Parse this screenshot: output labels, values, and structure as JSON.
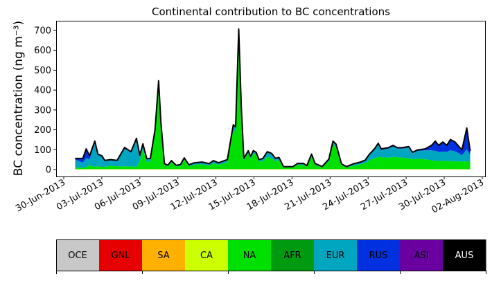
{
  "chart_data": {
    "type": "area",
    "stacked": true,
    "title": "Continental contribution to BC concentrations",
    "ylabel": "BC concentration (ng m⁻³)",
    "xlabel": "",
    "ylim": [
      0,
      740
    ],
    "yticks": [
      0,
      100,
      200,
      300,
      400,
      500,
      600,
      700
    ],
    "xlim_days_since_30jun2013": [
      -0.6,
      33.3
    ],
    "xticks_days": [
      0,
      3,
      6,
      9,
      12,
      15,
      18,
      21,
      24,
      27,
      30,
      33
    ],
    "xtick_labels": [
      "30-Jun-2013",
      "03-Jul-2013",
      "06-Jul-2013",
      "09-Jul-2013",
      "12-Jul-2013",
      "15-Jul-2013",
      "18-Jul-2013",
      "21-Jul-2013",
      "24-Jul-2013",
      "27-Jul-2013",
      "30-Jul-2013",
      "02-Aug-2013"
    ],
    "x_days_since_30jun2013": [
      0.9,
      1.5,
      1.77,
      2.04,
      2.45,
      2.7,
      3.0,
      3.24,
      3.7,
      4.2,
      4.8,
      5.3,
      5.73,
      6.0,
      6.24,
      6.55,
      6.83,
      7.2,
      7.48,
      7.66,
      7.94,
      8.2,
      8.49,
      8.86,
      9.2,
      9.5,
      9.87,
      10.3,
      10.9,
      11.46,
      11.8,
      12.2,
      12.9,
      13.37,
      13.55,
      13.8,
      14.0,
      14.2,
      14.55,
      14.73,
      14.95,
      15.17,
      15.4,
      15.7,
      16.05,
      16.4,
      16.7,
      16.97,
      17.33,
      18.07,
      18.44,
      18.9,
      19.17,
      19.54,
      19.82,
      20.37,
      20.9,
      21.23,
      21.47,
      21.9,
      22.3,
      22.84,
      23.4,
      23.76,
      24.1,
      24.5,
      24.8,
      25.04,
      25.6,
      25.96,
      26.3,
      26.7,
      27.2,
      27.5,
      27.9,
      28.5,
      29.0,
      29.3,
      29.55,
      29.9,
      30.2,
      30.5,
      30.85,
      31.4,
      31.78,
      32.05
    ],
    "series": [
      {
        "name": "OCE",
        "color": "#c8c8c8",
        "values": 0
      },
      {
        "name": "GNL",
        "color": "#e60000",
        "values": 0
      },
      {
        "name": "SA",
        "color": "#ffb000",
        "values": 1
      },
      {
        "name": "CA",
        "color": "#ccff00",
        "values": 1
      },
      {
        "name": "NA",
        "color": "#00e000",
        "values": [
          8,
          8,
          10,
          20,
          12,
          15,
          12,
          12,
          18,
          14,
          14,
          14,
          12,
          40,
          100,
          35,
          40,
          180,
          400,
          210,
          20,
          14,
          35,
          14,
          16,
          48,
          15,
          22,
          25,
          18,
          30,
          22,
          35,
          200,
          185,
          640,
          290,
          45,
          80,
          55,
          80,
          72,
          38,
          40,
          62,
          55,
          40,
          45,
          10,
          10,
          22,
          22,
          14,
          65,
          22,
          10,
          40,
          125,
          110,
          20,
          10,
          18,
          25,
          30,
          45,
          55,
          62,
          60,
          58,
          62,
          60,
          58,
          55,
          50,
          52,
          50,
          45,
          42,
          42,
          40,
          42,
          40,
          40,
          38,
          40,
          35
        ]
      },
      {
        "name": "AFR",
        "color": "#009a10",
        "values": 0
      },
      {
        "name": "EUR",
        "color": "#00a5c0",
        "values": [
          40,
          25,
          45,
          30,
          118,
          55,
          51,
          28,
          26,
          26,
          90,
          69,
          138,
          26,
          24,
          15,
          11,
          17,
          30,
          20,
          5,
          4,
          6,
          4,
          5,
          7,
          5,
          7,
          8,
          7,
          10,
          7,
          10,
          20,
          24,
          40,
          20,
          7,
          10,
          7,
          10,
          10,
          8,
          11,
          23,
          21,
          12,
          12,
          2,
          2,
          5,
          5,
          3,
          9,
          5,
          2,
          8,
          13,
          13,
          5,
          2,
          6,
          7,
          10,
          25,
          42,
          62,
          37,
          45,
          52,
          43,
          45,
          53,
          30,
          40,
          45,
          50,
          50,
          45,
          48,
          45,
          55,
          50,
          32,
          60,
          35
        ]
      },
      {
        "name": "RUS",
        "color": "#0030e0",
        "values": [
          5,
          20,
          46,
          17,
          10,
          4,
          4,
          3,
          3,
          3,
          4,
          4,
          4,
          3,
          3,
          2,
          2,
          3,
          14,
          4,
          2,
          1,
          1,
          1,
          1,
          1,
          1,
          2,
          2,
          2,
          2,
          2,
          2,
          3,
          3,
          24,
          5,
          1,
          2,
          1,
          2,
          2,
          1,
          2,
          2,
          2,
          1,
          1,
          0,
          0,
          1,
          1,
          0,
          1,
          1,
          0,
          1,
          2,
          2,
          1,
          0,
          2,
          3,
          4,
          4,
          4,
          5,
          4,
          4,
          5,
          4,
          4,
          5,
          4,
          4,
          6,
          24,
          48,
          32,
          48,
          32,
          53,
          46,
          26,
          106,
          20
        ]
      },
      {
        "name": "ASI",
        "color": "#6a00a0",
        "values": 1
      },
      {
        "name": "AUS",
        "color": "#000000",
        "values": 0
      }
    ],
    "legend": {
      "placement": "bottom-colorbar",
      "labels": [
        "OCE",
        "GNL",
        "SA",
        "CA",
        "NA",
        "AFR",
        "EUR",
        "RUS",
        "ASI",
        "AUS"
      ]
    },
    "grid": false
  }
}
